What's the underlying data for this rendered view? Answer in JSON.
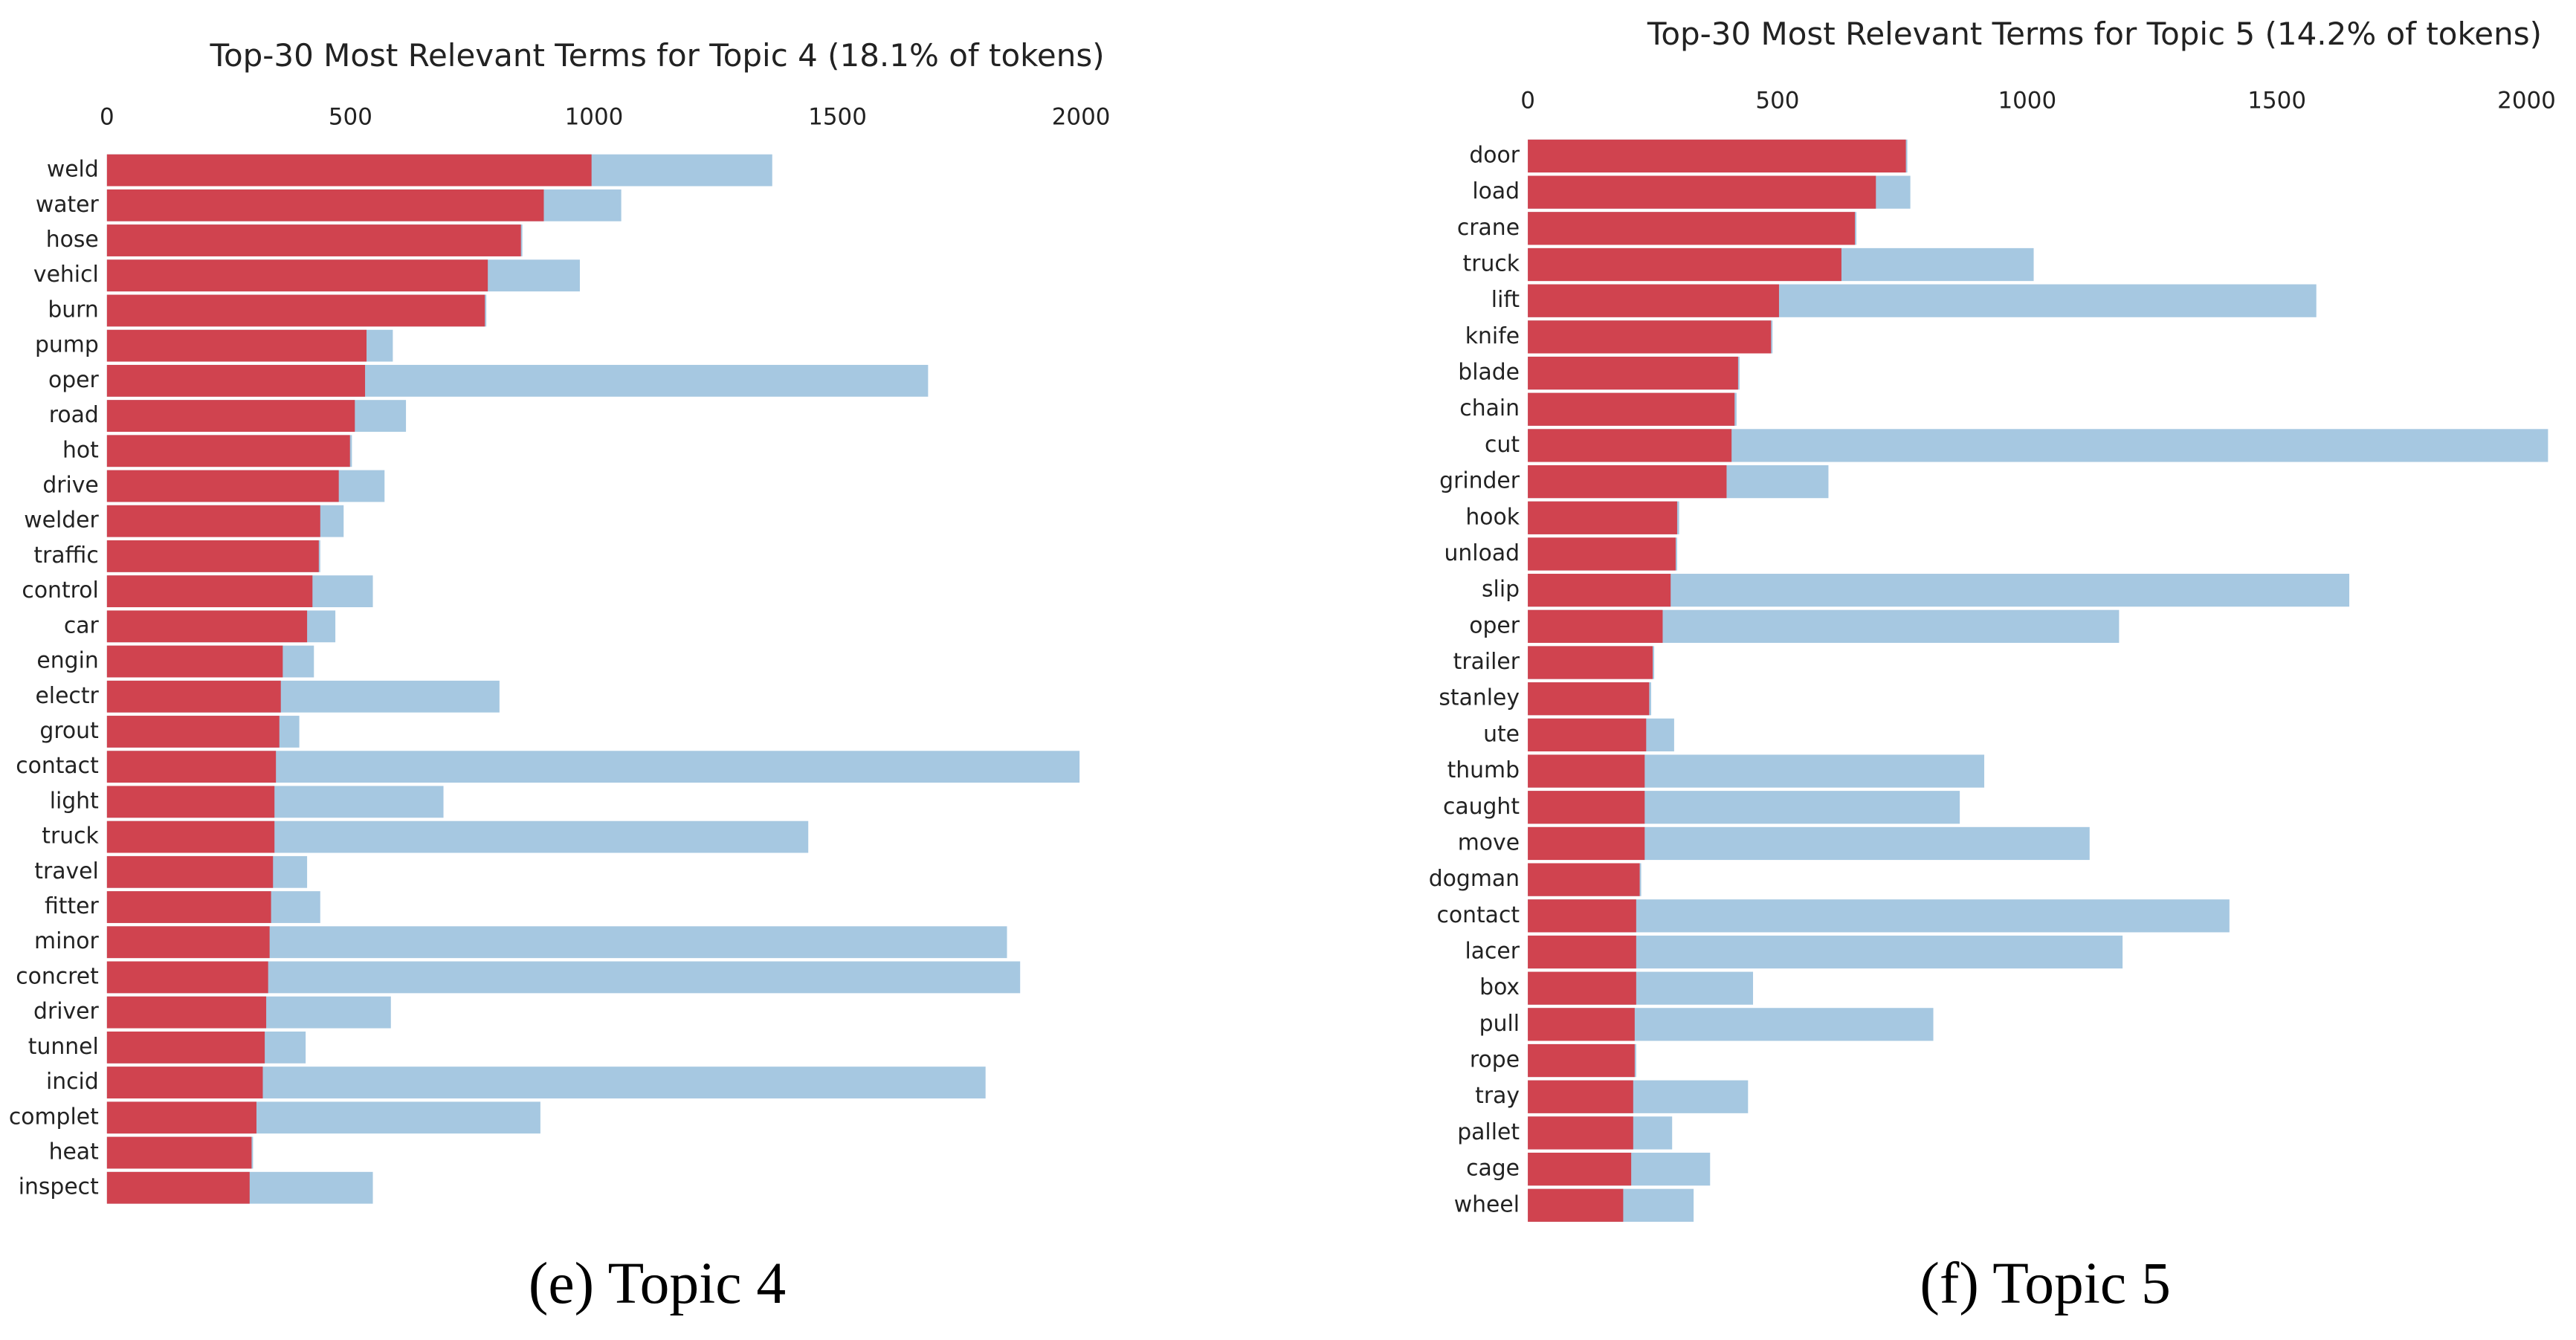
{
  "chart_data": [
    {
      "type": "bar",
      "orientation": "horizontal",
      "title": "Top-30 Most Relevant Terms for Topic 4 (18.1% of tokens)",
      "caption": "(e) Topic 4",
      "categories": [
        "weld",
        "water",
        "hose",
        "vehicl",
        "burn",
        "pump",
        "oper",
        "road",
        "hot",
        "drive",
        "welder",
        "traffic",
        "control",
        "car",
        "engin",
        "electr",
        "grout",
        "contact",
        "light",
        "truck",
        "travel",
        "fitter",
        "minor",
        "concret",
        "driver",
        "tunnel",
        "incid",
        "complet",
        "heat",
        "inspect"
      ],
      "series": [
        {
          "color": "#a6c8e1",
          "values": [
            1366,
            1056,
            853,
            971,
            779,
            587,
            1686,
            614,
            503,
            570,
            486,
            438,
            546,
            469,
            425,
            806,
            395,
            1997,
            691,
            1440,
            411,
            438,
            1848,
            1875,
            583,
            408,
            1804,
            890,
            300,
            546
          ]
        },
        {
          "color": "#d0434f",
          "values": [
            995,
            897,
            850,
            782,
            776,
            533,
            530,
            509,
            499,
            476,
            438,
            435,
            422,
            411,
            361,
            357,
            354,
            347,
            344,
            344,
            341,
            337,
            334,
            331,
            327,
            324,
            320,
            307,
            297,
            293
          ]
        }
      ],
      "xlim": [
        0,
        2000
      ],
      "xticks": [
        0,
        500,
        1000,
        1500,
        2000
      ]
    },
    {
      "type": "bar",
      "orientation": "horizontal",
      "title": "Top-30 Most Relevant Terms for Topic 5 (14.2% of tokens)",
      "caption": "(f) Topic 5",
      "categories": [
        "door",
        "load",
        "crane",
        "truck",
        "lift",
        "knife",
        "blade",
        "chain",
        "cut",
        "grinder",
        "hook",
        "unload",
        "slip",
        "oper",
        "trailer",
        "stanley",
        "ute",
        "thumb",
        "caught",
        "move",
        "dogman",
        "contact",
        "lacer",
        "box",
        "pull",
        "rope",
        "tray",
        "pallet",
        "cage",
        "wheel"
      ],
      "series": [
        {
          "color": "#a6c8e1",
          "values": [
            760,
            766,
            658,
            1013,
            1579,
            490,
            424,
            418,
            2043,
            602,
            303,
            299,
            1645,
            1184,
            253,
            247,
            293,
            914,
            865,
            1125,
            227,
            1405,
            1191,
            451,
            812,
            217,
            441,
            289,
            365,
            332
          ]
        },
        {
          "color": "#d0434f",
          "values": [
            757,
            697,
            655,
            628,
            503,
            487,
            421,
            414,
            408,
            398,
            299,
            296,
            286,
            270,
            250,
            243,
            237,
            234,
            234,
            234,
            224,
            217,
            217,
            217,
            214,
            214,
            211,
            211,
            207,
            191
          ]
        }
      ],
      "xlim": [
        0,
        2000
      ],
      "xticks": [
        0,
        500,
        1000,
        1500,
        2000
      ]
    }
  ]
}
